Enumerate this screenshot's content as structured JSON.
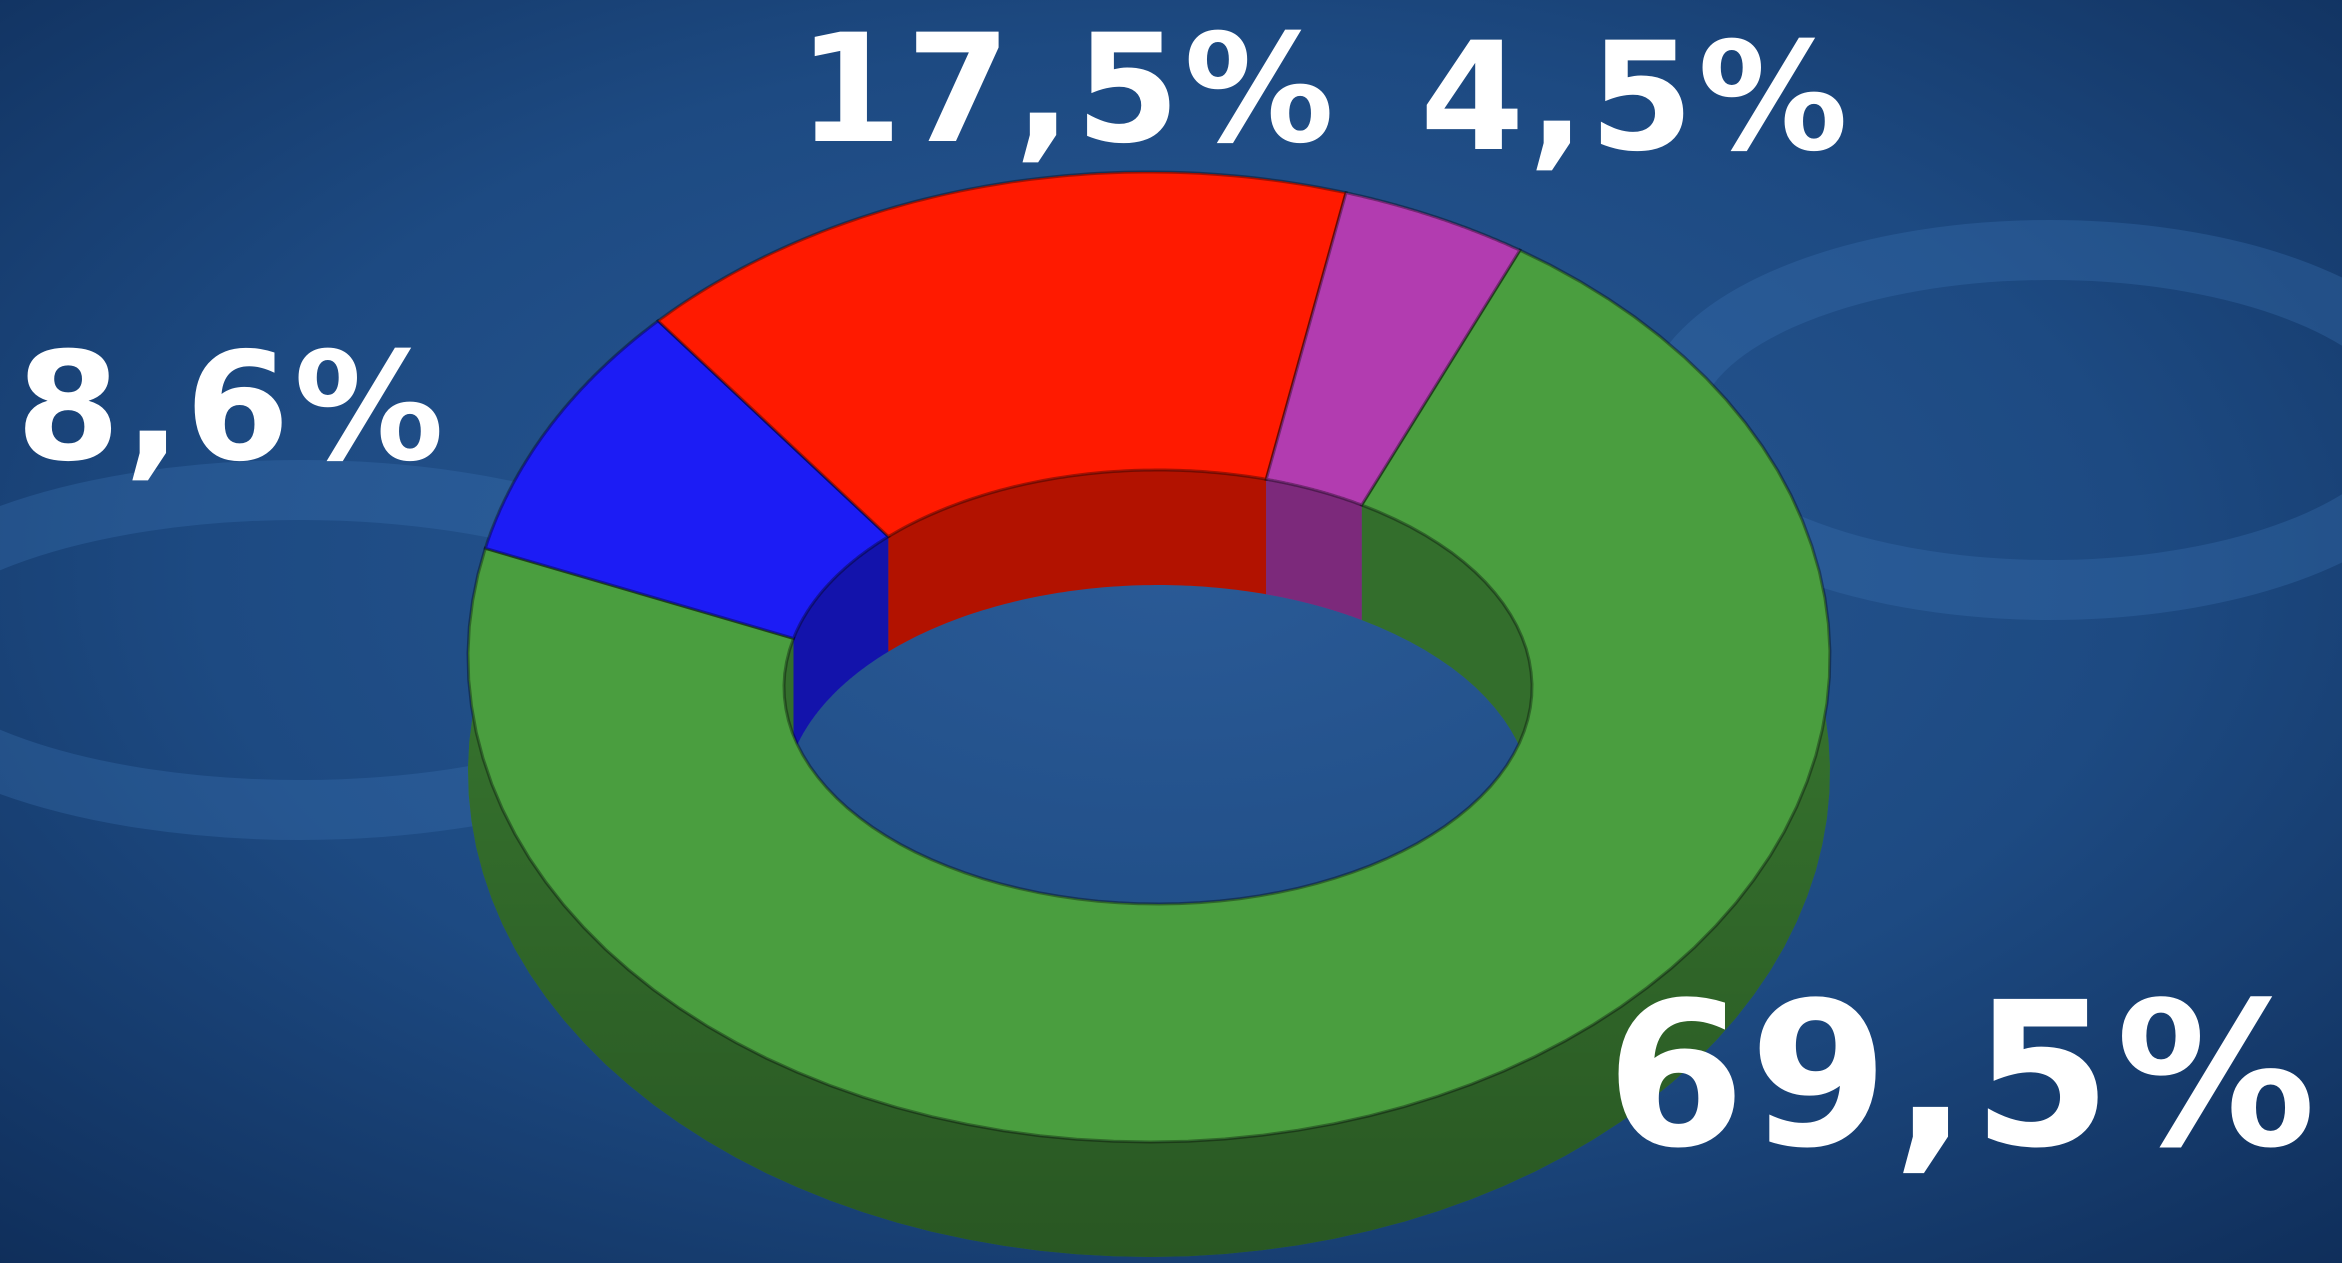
{
  "chart_data": {
    "type": "donut",
    "values": [
      69.5,
      8.6,
      17.5,
      4.5
    ],
    "value_labels": [
      "69,5%",
      "8,6%",
      "17,5%",
      "4,5%"
    ],
    "colors": [
      "#4a9e3f",
      "#1c1cf5",
      "#ff1a00",
      "#b23cb0"
    ]
  }
}
